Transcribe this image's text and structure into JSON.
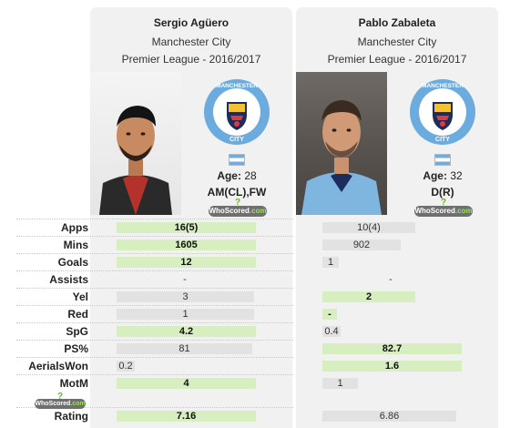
{
  "players": [
    {
      "name": "Sergio Agüero",
      "team": "Manchester City",
      "league": "Premier League - 2016/2017",
      "age_label": "Age:",
      "age": "28",
      "position": "AM(CL),FW"
    },
    {
      "name": "Pablo Zabaleta",
      "team": "Manchester City",
      "league": "Premier League - 2016/2017",
      "age_label": "Age:",
      "age": "32",
      "position": "D(R)"
    }
  ],
  "badge": {
    "top_text": "MANCHESTER",
    "bottom_text": "CITY"
  },
  "whoscored_logo": {
    "text_a": "WhoScored",
    "text_b": ".com",
    "mark": "?"
  },
  "stats": [
    {
      "label": "Apps",
      "left": "16(5)",
      "right": "10(4)",
      "winner": "left",
      "left_fill": 0.78,
      "right_fill": 0.52
    },
    {
      "label": "Mins",
      "left": "1605",
      "right": "902",
      "winner": "left",
      "left_fill": 0.78,
      "right_fill": 0.44
    },
    {
      "label": "Goals",
      "left": "12",
      "right": "1",
      "winner": "left",
      "left_fill": 0.78,
      "right_fill": 0.09
    },
    {
      "label": "Assists",
      "left": "-",
      "right": "-",
      "winner": "none",
      "left_fill": 0,
      "right_fill": 0
    },
    {
      "label": "Yel",
      "left": "3",
      "right": "2",
      "winner": "right",
      "left_fill": 0.77,
      "right_fill": 0.52
    },
    {
      "label": "Red",
      "left": "1",
      "right": "-",
      "winner": "right",
      "left_fill": 0.77,
      "right_fill": 0.08
    },
    {
      "label": "SpG",
      "left": "4.2",
      "right": "0.4",
      "winner": "left",
      "left_fill": 0.78,
      "right_fill": 0.1
    },
    {
      "label": "PS%",
      "left": "81",
      "right": "82.7",
      "winner": "right",
      "left_fill": 0.76,
      "right_fill": 0.78
    },
    {
      "label": "AerialsWon",
      "left": "0.2",
      "right": "1.6",
      "winner": "right",
      "left_fill": 0.1,
      "right_fill": 0.78
    },
    {
      "label": "MotM",
      "left": "4",
      "right": "1",
      "winner": "left",
      "left_fill": 0.78,
      "right_fill": 0.2
    },
    {
      "label": "Rating",
      "left": "7.16",
      "right": "6.86",
      "winner": "left",
      "left_fill": 0.78,
      "right_fill": 0.75
    }
  ],
  "colors": {
    "panel_bg": "#f1f1f1",
    "win_bar": "#d7eec0",
    "lose_bar": "#e2e2e2",
    "city_blue": "#6cabdd",
    "city_navy": "#1c2c5b"
  }
}
